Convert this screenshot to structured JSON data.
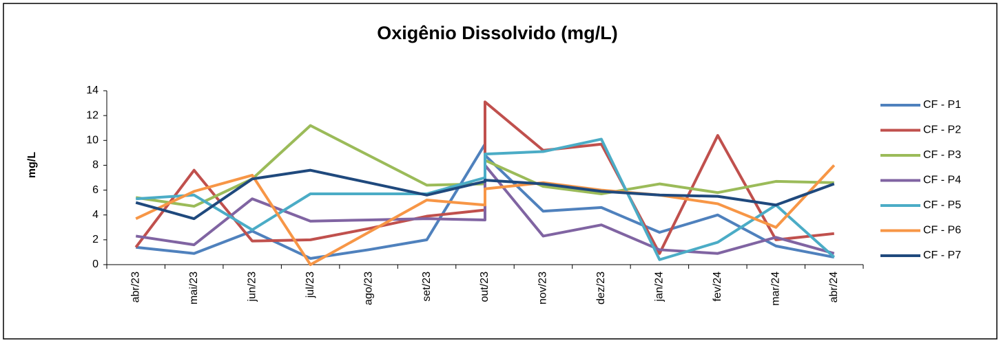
{
  "chart_data": {
    "type": "line",
    "title": "Oxigênio Dissolvido (mg/L)",
    "y_label": "mg/L",
    "categories": [
      "abr/23",
      "mai/23",
      "jun/23",
      "jul/23",
      "ago/23",
      "set/23",
      "out/23",
      null,
      "nov/23",
      "dez/23",
      "jan/24",
      "fev/24",
      "mar/24",
      "abr/24"
    ],
    "ylim": [
      0,
      14
    ],
    "yticks": [
      0,
      2,
      4,
      6,
      8,
      10,
      12,
      14
    ],
    "grid": false,
    "legend": "right",
    "series": [
      {
        "name": "CF - P1",
        "color": "#4f81bd",
        "values": [
          1.4,
          0.9,
          2.7,
          0.5,
          1.2,
          2.0,
          9.7,
          8.8,
          4.3,
          4.6,
          2.6,
          4.0,
          1.5,
          0.6
        ]
      },
      {
        "name": "CF - P2",
        "color": "#c0504d",
        "values": [
          1.4,
          7.6,
          1.9,
          2.0,
          2.9,
          3.9,
          4.4,
          13.1,
          9.2,
          9.7,
          0.9,
          10.4,
          2.0,
          2.5
        ]
      },
      {
        "name": "CF - P3",
        "color": "#9bbb59",
        "values": [
          5.4,
          4.7,
          6.9,
          11.2,
          8.8,
          6.4,
          6.5,
          8.4,
          6.3,
          5.7,
          6.5,
          5.8,
          6.7,
          6.6
        ]
      },
      {
        "name": "CF - P4",
        "color": "#8064a2",
        "values": [
          2.3,
          1.6,
          5.3,
          3.5,
          3.6,
          3.7,
          3.6,
          8.0,
          2.3,
          3.2,
          1.2,
          0.9,
          2.2,
          0.9
        ]
      },
      {
        "name": "CF - P5",
        "color": "#4bacc6",
        "values": [
          5.3,
          5.6,
          2.8,
          5.7,
          5.7,
          5.7,
          7.0,
          8.9,
          9.1,
          10.1,
          0.4,
          1.8,
          4.8,
          0.6
        ]
      },
      {
        "name": "CF - P6",
        "color": "#f79646",
        "values": [
          3.7,
          5.9,
          7.2,
          0.0,
          2.6,
          5.2,
          4.8,
          6.1,
          6.6,
          6.0,
          5.6,
          4.9,
          3.0,
          8.0
        ]
      },
      {
        "name": "CF - P7",
        "color": "#1f497d",
        "values": [
          5.0,
          3.7,
          6.9,
          7.6,
          6.6,
          5.6,
          6.7,
          6.8,
          6.5,
          5.9,
          5.6,
          5.5,
          4.8,
          6.5
        ]
      }
    ]
  }
}
